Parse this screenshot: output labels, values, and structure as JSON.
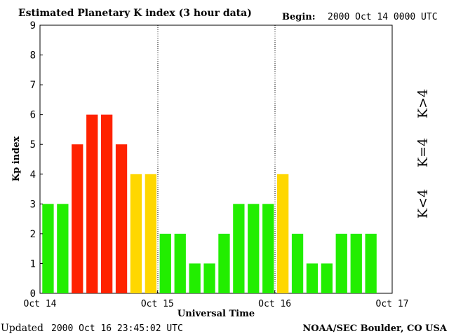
{
  "header": {
    "title": "Estimated Planetary K index (3 hour data)",
    "begin_label": "Begin:",
    "begin_value": "2000 Oct 14 0000 UTC"
  },
  "footer": {
    "updated_label": "Updated",
    "updated_value": "2000 Oct 16 23:45:02 UTC",
    "credit": "NOAA/SEC Boulder, CO USA"
  },
  "legend": {
    "high": "K>4",
    "equal": "K=4",
    "low": "K<4"
  },
  "colors": {
    "high": "#ff2200",
    "equal": "#ffd700",
    "low": "#22ee00"
  },
  "chart_data": {
    "type": "bar",
    "title": "Estimated Planetary K index (3 hour data)",
    "xlabel": "Universal Time",
    "ylabel": "Kp index",
    "ylim": [
      0,
      9
    ],
    "yticks": [
      "0",
      "1",
      "2",
      "3",
      "4",
      "5",
      "6",
      "7",
      "8",
      "9"
    ],
    "xticks": [
      "Oct 14",
      "Oct 15",
      "Oct 16",
      "Oct 17"
    ],
    "bars_per_day": 8,
    "values": [
      3,
      3,
      5,
      6,
      6,
      5,
      4,
      4,
      2,
      2,
      1,
      1,
      2,
      3,
      3,
      3,
      4,
      2,
      1,
      1,
      2,
      2,
      2
    ],
    "color_rule": "K<4 green, K=4 yellow, K>4 red",
    "grid": false,
    "legend_position": "right"
  }
}
